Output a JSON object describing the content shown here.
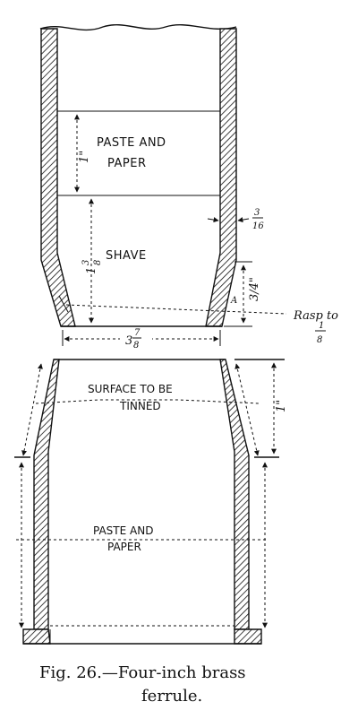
{
  "upper_part": {
    "label_paste_1": "PASTE AND",
    "label_paste_2": "PAPER",
    "label_shave": "SHAVE",
    "dim_paste_height": "1\"",
    "dim_shave_whole": "1",
    "dim_shave_num": "3",
    "dim_shave_den": "8",
    "dim_wall_num": "3",
    "dim_wall_den": "16",
    "dim_taper": "3/4\"",
    "dim_taper_a": "A",
    "rasp_label": "Rasp to",
    "rasp_num": "1",
    "rasp_den": "8",
    "dim_bottom_whole": "3",
    "dim_bottom_num": "7",
    "dim_bottom_den": "8"
  },
  "lower_part": {
    "label_surface_1": "SURFACE TO BE",
    "label_surface_2": "TINNED",
    "label_paste_1": "PASTE AND",
    "label_paste_2": "PAPER",
    "dim_tinned": "1\""
  },
  "caption": {
    "fig": "Fig. 26.",
    "line1": "—Four-inch brass",
    "line2": "ferrule."
  }
}
